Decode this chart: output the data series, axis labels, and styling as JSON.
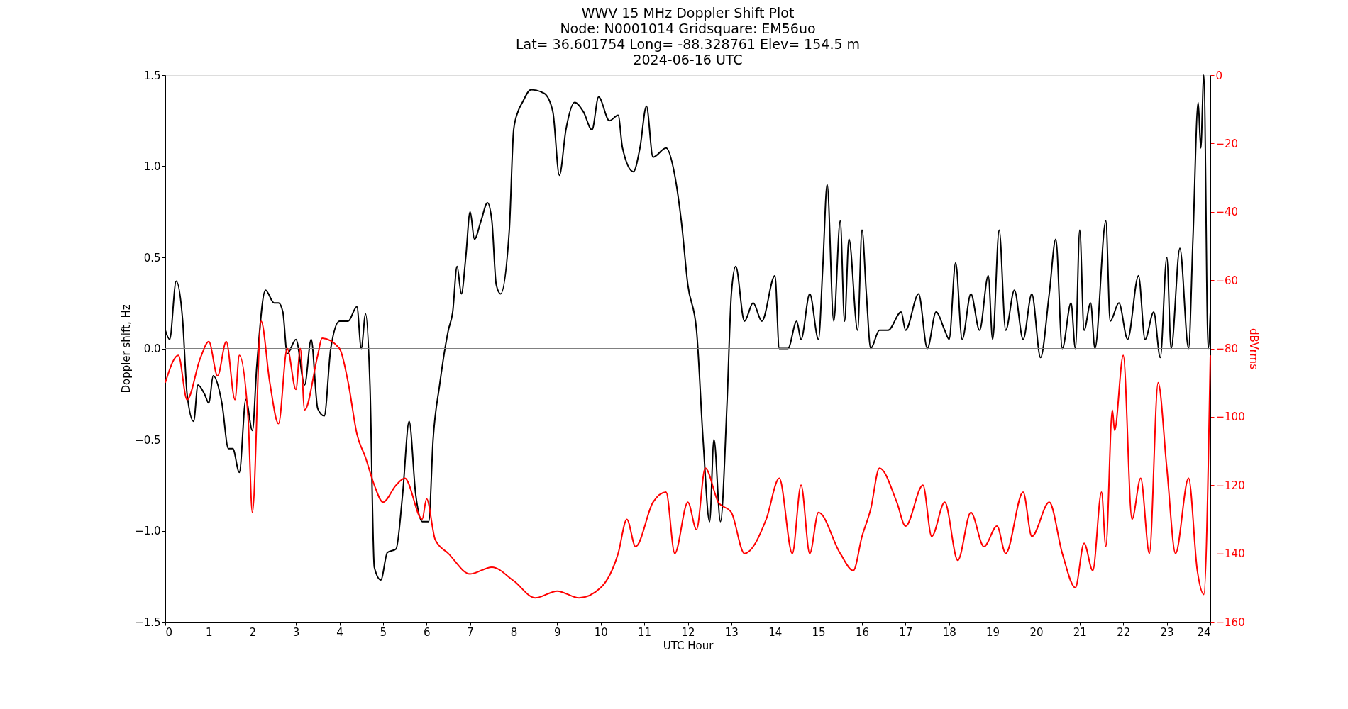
{
  "chart_data": {
    "type": "line",
    "title": "WWV 15 MHz Doppler Shift Plot",
    "subtitle": "Node:  N0001014     Gridsquare:  EM56uo\nLat= 36.601754    Long= -88.328761    Elev= 154.5 m\n2024-06-16  UTC",
    "xlabel": "UTC Hour",
    "ylabel": "Doppler shift, Hz",
    "y2label": "dBVrms",
    "xlim": [
      0,
      24
    ],
    "xticks": [
      0,
      1,
      2,
      3,
      4,
      5,
      6,
      7,
      8,
      9,
      10,
      11,
      12,
      13,
      14,
      15,
      16,
      17,
      18,
      19,
      20,
      21,
      22,
      23,
      24
    ],
    "ylim": [
      -1.5,
      1.5
    ],
    "yticks": [
      {
        "value": -1.5,
        "label": "−1.5"
      },
      {
        "value": -1.0,
        "label": "−1.0"
      },
      {
        "value": -0.5,
        "label": "−0.5"
      },
      {
        "value": 0,
        "label": "0.0"
      },
      {
        "value": 0.5,
        "label": "0.5"
      },
      {
        "value": 1.0,
        "label": "1.0"
      },
      {
        "value": 1.5,
        "label": "1.5"
      }
    ],
    "y2lim": [
      -160,
      0
    ],
    "y2ticks": [
      {
        "value": -160,
        "label": "−160"
      },
      {
        "value": -140,
        "label": "−140"
      },
      {
        "value": -120,
        "label": "−120"
      },
      {
        "value": -100,
        "label": "−100"
      },
      {
        "value": -80,
        "label": "−80"
      },
      {
        "value": -60,
        "label": "−60"
      },
      {
        "value": -40,
        "label": "−40"
      },
      {
        "value": -20,
        "label": "−20"
      },
      {
        "value": 0,
        "label": "0"
      }
    ],
    "grid": false,
    "line_style": "solid",
    "marker": "none",
    "ref_lines": [
      {
        "axis": "y",
        "value": 0,
        "color": "#808080"
      }
    ],
    "series": [
      {
        "color": "#000000",
        "axis": "y",
        "x": [
          0,
          0.1,
          0.25,
          0.4,
          0.5,
          0.65,
          0.75,
          0.9,
          1.0,
          1.1,
          1.3,
          1.45,
          1.55,
          1.7,
          1.85,
          2.0,
          2.1,
          2.3,
          2.5,
          2.6,
          2.7,
          2.8,
          3.0,
          3.2,
          3.35,
          3.5,
          3.65,
          3.8,
          4.0,
          4.2,
          4.4,
          4.5,
          4.6,
          4.7,
          4.8,
          4.95,
          5.1,
          5.3,
          5.45,
          5.6,
          5.75,
          5.9,
          6.05,
          6.15,
          6.3,
          6.5,
          6.6,
          6.7,
          6.8,
          6.9,
          7.0,
          7.1,
          7.25,
          7.4,
          7.5,
          7.6,
          7.7,
          7.9,
          8.0,
          8.1,
          8.2,
          8.4,
          8.7,
          8.9,
          9.05,
          9.2,
          9.4,
          9.6,
          9.8,
          9.95,
          10.2,
          10.4,
          10.5,
          10.75,
          10.9,
          11.05,
          11.2,
          11.5,
          11.7,
          11.85,
          12.0,
          12.2,
          12.35,
          12.5,
          12.6,
          12.75,
          12.9,
          13.0,
          13.1,
          13.3,
          13.5,
          13.7,
          14.0,
          14.1,
          14.3,
          14.5,
          14.6,
          14.8,
          15.0,
          15.1,
          15.2,
          15.35,
          15.5,
          15.6,
          15.7,
          15.9,
          16.0,
          16.1,
          16.2,
          16.4,
          16.6,
          16.9,
          17.0,
          17.3,
          17.5,
          17.7,
          17.9,
          18.0,
          18.15,
          18.3,
          18.5,
          18.7,
          18.9,
          19.0,
          19.15,
          19.3,
          19.5,
          19.7,
          19.9,
          20.1,
          20.3,
          20.45,
          20.6,
          20.8,
          20.9,
          21.0,
          21.1,
          21.25,
          21.35,
          21.6,
          21.7,
          21.9,
          22.1,
          22.35,
          22.5,
          22.7,
          22.85,
          23.0,
          23.1,
          23.3,
          23.5,
          23.6,
          23.72,
          23.78,
          23.85,
          23.95,
          24.0
        ],
        "values": [
          0.1,
          0.05,
          0.37,
          0.15,
          -0.25,
          -0.4,
          -0.2,
          -0.25,
          -0.3,
          -0.15,
          -0.3,
          -0.55,
          -0.55,
          -0.68,
          -0.28,
          -0.45,
          -0.1,
          0.32,
          0.25,
          0.25,
          0.2,
          -0.03,
          0.05,
          -0.2,
          0.05,
          -0.33,
          -0.37,
          0.0,
          0.15,
          0.15,
          0.23,
          0.0,
          0.19,
          -0.2,
          -1.2,
          -1.27,
          -1.12,
          -1.1,
          -0.8,
          -0.4,
          -0.8,
          -0.95,
          -0.95,
          -0.5,
          -0.2,
          0.1,
          0.2,
          0.45,
          0.3,
          0.5,
          0.75,
          0.6,
          0.7,
          0.8,
          0.7,
          0.35,
          0.3,
          0.65,
          1.2,
          1.3,
          1.35,
          1.42,
          1.4,
          1.3,
          0.95,
          1.2,
          1.35,
          1.3,
          1.2,
          1.38,
          1.25,
          1.28,
          1.1,
          0.97,
          1.1,
          1.33,
          1.05,
          1.1,
          0.95,
          0.7,
          0.35,
          0.1,
          -0.5,
          -0.95,
          -0.5,
          -0.95,
          -0.3,
          0.3,
          0.45,
          0.15,
          0.25,
          0.15,
          0.4,
          0.0,
          0.0,
          0.15,
          0.05,
          0.3,
          0.05,
          0.45,
          0.9,
          0.15,
          0.7,
          0.15,
          0.6,
          0.1,
          0.65,
          0.3,
          0.0,
          0.1,
          0.1,
          0.2,
          0.1,
          0.3,
          0.0,
          0.2,
          0.1,
          0.05,
          0.47,
          0.05,
          0.3,
          0.1,
          0.4,
          0.05,
          0.65,
          0.1,
          0.32,
          0.05,
          0.3,
          -0.05,
          0.3,
          0.6,
          0.0,
          0.25,
          0.0,
          0.65,
          0.1,
          0.25,
          0.0,
          0.7,
          0.15,
          0.25,
          0.05,
          0.4,
          0.05,
          0.2,
          -0.05,
          0.5,
          0.0,
          0.55,
          0.0,
          0.6,
          1.35,
          1.1,
          1.5,
          0.0,
          0.2
        ]
      },
      {
        "color": "#ff0000",
        "axis": "y2",
        "x": [
          0,
          0.3,
          0.5,
          0.8,
          1.0,
          1.2,
          1.4,
          1.6,
          1.7,
          1.9,
          2.0,
          2.2,
          2.4,
          2.6,
          2.8,
          3.0,
          3.1,
          3.2,
          3.5,
          3.6,
          4.0,
          4.2,
          4.4,
          4.6,
          4.8,
          5.0,
          5.3,
          5.5,
          5.9,
          6.0,
          6.2,
          6.5,
          7.0,
          7.5,
          8.0,
          8.5,
          9.0,
          9.5,
          10.0,
          10.4,
          10.6,
          10.8,
          11.2,
          11.5,
          11.7,
          12.0,
          12.2,
          12.4,
          12.7,
          13.0,
          13.3,
          13.8,
          14.1,
          14.4,
          14.6,
          14.8,
          15.0,
          15.5,
          15.8,
          16.0,
          16.2,
          16.4,
          16.8,
          17.0,
          17.4,
          17.6,
          17.9,
          18.2,
          18.5,
          18.8,
          19.1,
          19.3,
          19.7,
          19.9,
          20.3,
          20.6,
          20.9,
          21.1,
          21.3,
          21.5,
          21.6,
          21.75,
          21.8,
          22.0,
          22.2,
          22.4,
          22.6,
          22.8,
          23.0,
          23.2,
          23.5,
          23.7,
          23.85,
          24.0
        ],
        "values": [
          -90,
          -82,
          -95,
          -83,
          -78,
          -88,
          -78,
          -95,
          -82,
          -100,
          -128,
          -72,
          -90,
          -102,
          -80,
          -92,
          -80,
          -98,
          -82,
          -77,
          -80,
          -90,
          -105,
          -112,
          -120,
          -125,
          -120,
          -118,
          -130,
          -124,
          -136,
          -140,
          -146,
          -144,
          -148,
          -153,
          -151,
          -153,
          -150,
          -140,
          -130,
          -138,
          -125,
          -122,
          -140,
          -125,
          -133,
          -115,
          -125,
          -128,
          -140,
          -130,
          -118,
          -140,
          -120,
          -140,
          -128,
          -140,
          -145,
          -135,
          -127,
          -115,
          -125,
          -132,
          -120,
          -135,
          -125,
          -142,
          -128,
          -138,
          -132,
          -140,
          -122,
          -135,
          -125,
          -140,
          -150,
          -137,
          -145,
          -122,
          -138,
          -98,
          -104,
          -82,
          -130,
          -118,
          -140,
          -90,
          -115,
          -140,
          -118,
          -145,
          -152,
          -82
        ]
      }
    ]
  }
}
